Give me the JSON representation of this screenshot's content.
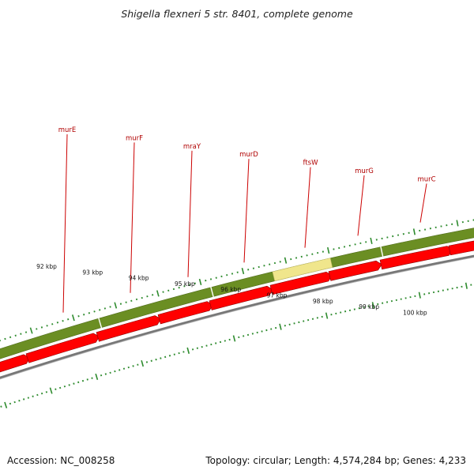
{
  "title": "Shigella flexneri 5 str. 8401, complete genome",
  "accession_text": "Accession: NC_008258",
  "summary_text": "Topology: circular; Length: 4,574,284 bp; Genes: 4,233",
  "colors": {
    "backbone": "#6b8e23",
    "highlight": "#f0e68c",
    "cds": "#ff0000",
    "label": "#b00000",
    "tick": "#2e8b2e",
    "baseline": "#777777"
  },
  "gene_labels": [
    "murE",
    "murF",
    "mraY",
    "murD",
    "ftsW",
    "murG",
    "murC"
  ],
  "scale_labels": [
    "92 kbp",
    "93 kbp",
    "94 kbp",
    "95 kbp",
    "96 kbp",
    "97 kbp",
    "98 kbp",
    "99 kbp",
    "100 kbp"
  ]
}
